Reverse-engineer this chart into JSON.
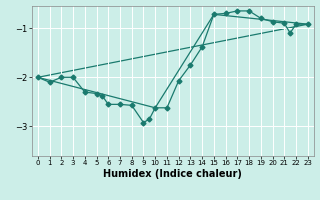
{
  "xlabel": "Humidex (Indice chaleur)",
  "bg_color": "#cceee8",
  "grid_color": "#ffffff",
  "line_color": "#1a7a6e",
  "xlim": [
    -0.5,
    23.5
  ],
  "ylim": [
    -3.6,
    -0.55
  ],
  "yticks": [
    -3,
    -2,
    -1
  ],
  "xticks": [
    0,
    1,
    2,
    3,
    4,
    5,
    6,
    7,
    8,
    9,
    10,
    11,
    12,
    13,
    14,
    15,
    16,
    17,
    18,
    19,
    20,
    21,
    22,
    23
  ],
  "main_x": [
    0,
    1,
    2,
    3,
    4,
    5,
    5.5,
    6,
    7,
    8,
    9,
    9.5,
    10,
    11,
    12,
    13,
    14,
    15,
    16,
    17,
    18,
    19,
    20,
    21,
    21.5,
    22,
    23
  ],
  "main_y": [
    -2.0,
    -2.1,
    -2.0,
    -2.0,
    -2.3,
    -2.33,
    -2.38,
    -2.55,
    -2.55,
    -2.57,
    -2.92,
    -2.85,
    -2.62,
    -2.62,
    -2.07,
    -1.75,
    -1.38,
    -0.72,
    -0.7,
    -0.65,
    -0.65,
    -0.8,
    -0.87,
    -0.9,
    -1.1,
    -0.92,
    -0.92
  ],
  "line2_x": [
    0,
    23
  ],
  "line2_y": [
    -2.0,
    -0.92
  ],
  "line3_x": [
    0,
    10,
    15,
    23
  ],
  "line3_y": [
    -2.0,
    -2.62,
    -0.72,
    -0.92
  ],
  "marker": "D",
  "markersize": 2.5,
  "linewidth": 0.9,
  "xlabel_fontsize": 7,
  "xtick_fontsize": 5,
  "ytick_fontsize": 6
}
